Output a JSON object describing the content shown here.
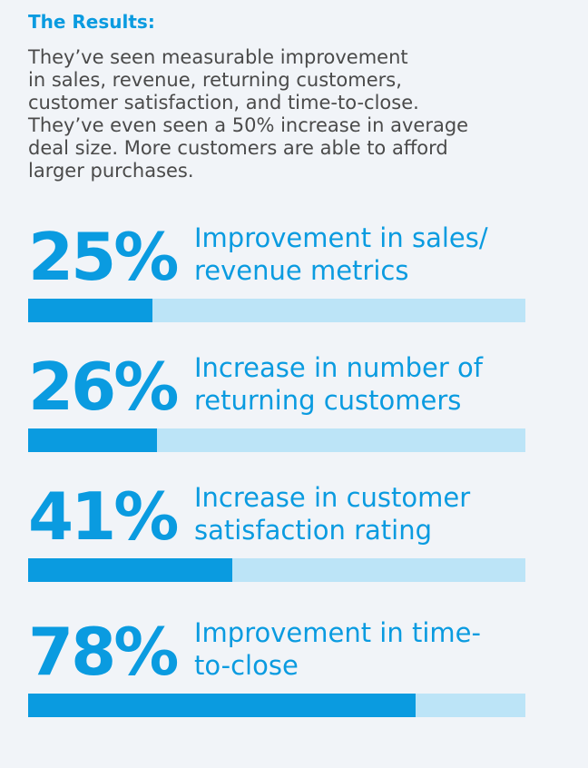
{
  "title": "The Results:",
  "intro_lines": [
    "They’ve seen measurable improvement",
    "in sales, revenue, returning customers,",
    "customer satisfaction, and time-to-close.",
    "They’ve even seen a 50% increase in average",
    "deal size. More customers are able to afford",
    "larger purchases."
  ],
  "colors": {
    "accent": "#0a9be0",
    "track": "#bce4f7",
    "text": "#4a4a4a",
    "background": "#f1f4f8"
  },
  "stats": [
    {
      "value_label": "25%",
      "desc_lines": [
        "Improvement in sales/",
        "revenue metrics"
      ]
    },
    {
      "value_label": "26%",
      "desc_lines": [
        "Increase in number of",
        "returning customers"
      ]
    },
    {
      "value_label": "41%",
      "desc_lines": [
        "Increase in customer",
        "satisfaction rating"
      ]
    },
    {
      "value_label": "78%",
      "desc_lines": [
        "Improvement in time-",
        "to-close"
      ]
    }
  ],
  "chart_data": {
    "type": "bar",
    "categories": [
      "Improvement in sales/revenue metrics",
      "Increase in number of returning customers",
      "Increase in customer satisfaction rating",
      "Improvement in time-to-close"
    ],
    "values": [
      25,
      26,
      41,
      78
    ],
    "ylim": [
      0,
      100
    ]
  }
}
